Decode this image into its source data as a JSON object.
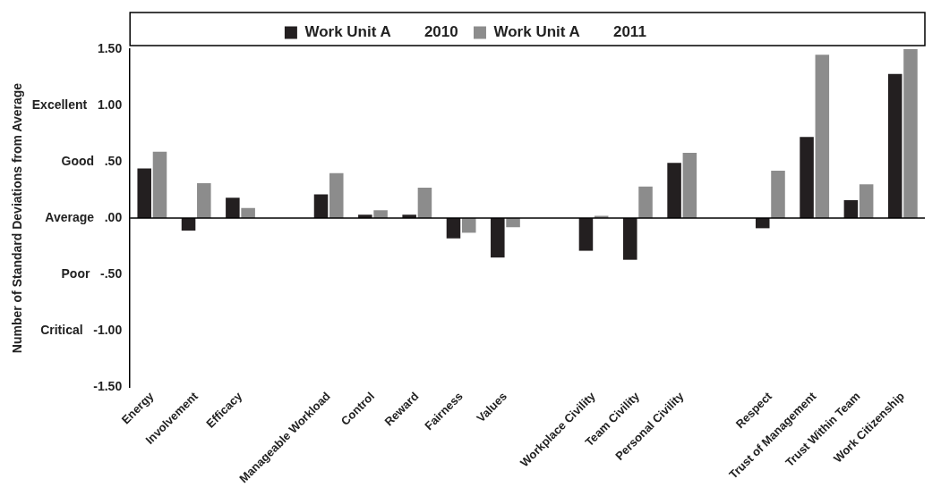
{
  "chart_data": {
    "type": "bar",
    "ylabel": "Number of Standard Deviations from Average",
    "categories": [
      "Energy",
      "Involvement",
      "Efficacy",
      null,
      "Manageable Workload",
      "Control",
      "Reward",
      "Fairness",
      "Values",
      null,
      "Workplace Civility",
      "Team Civility",
      "Personal Civility",
      null,
      "Respect",
      "Trust of Management",
      "Trust Within Team",
      "Work Citizenship"
    ],
    "series": [
      {
        "name": "Work Unit A        2010",
        "color": "#231f20",
        "values": [
          0.44,
          -0.11,
          0.18,
          null,
          0.21,
          0.03,
          0.03,
          -0.18,
          -0.35,
          null,
          -0.29,
          -0.37,
          0.49,
          null,
          -0.09,
          0.72,
          0.16,
          1.28
        ]
      },
      {
        "name": "Work Unit A        2011",
        "color": "#8c8c8c",
        "values": [
          0.59,
          0.31,
          0.09,
          null,
          0.4,
          0.07,
          0.27,
          -0.13,
          -0.08,
          null,
          0.02,
          0.28,
          0.58,
          null,
          0.42,
          1.45,
          0.3,
          1.5
        ]
      }
    ],
    "ylim": [
      -1.5,
      1.5
    ],
    "yticks": [
      {
        "value": -1.5,
        "label": "-1.50"
      },
      {
        "value": -1,
        "label": "Critical   -1.00"
      },
      {
        "value": -0.5,
        "label": "Poor   -.50"
      },
      {
        "value": 0,
        "label": "Average   .00"
      },
      {
        "value": 0.5,
        "label": "Good   .50"
      },
      {
        "value": 1,
        "label": "Excellent   1.00"
      },
      {
        "value": 1.5,
        "label": "1.50"
      }
    ],
    "ref_lines": [
      {
        "axis": "y",
        "value": 0,
        "color": "#000000"
      }
    ],
    "grid": false,
    "legend": "top"
  }
}
